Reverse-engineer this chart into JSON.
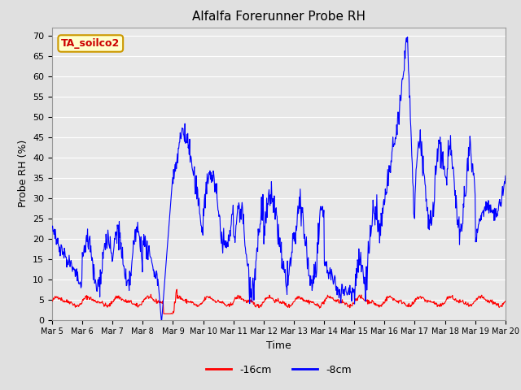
{
  "title": "Alfalfa Forerunner Probe RH",
  "ylabel": "Probe RH (%)",
  "xlabel": "Time",
  "ylim": [
    0,
    72
  ],
  "yticks": [
    0,
    5,
    10,
    15,
    20,
    25,
    30,
    35,
    40,
    45,
    50,
    55,
    60,
    65,
    70
  ],
  "fig_bg_color": "#e0e0e0",
  "plot_bg_color": "#e8e8e8",
  "line1_color": "#ff0000",
  "line2_color": "#0000ff",
  "legend_labels": [
    "-16cm",
    "-8cm"
  ],
  "annotation_text": "TA_soilco2",
  "annotation_bg": "#ffffcc",
  "annotation_border": "#cc9900",
  "annotation_text_color": "#cc0000",
  "grid_color": "#ffffff",
  "n_points": 960,
  "start_day": 5,
  "end_day": 20
}
